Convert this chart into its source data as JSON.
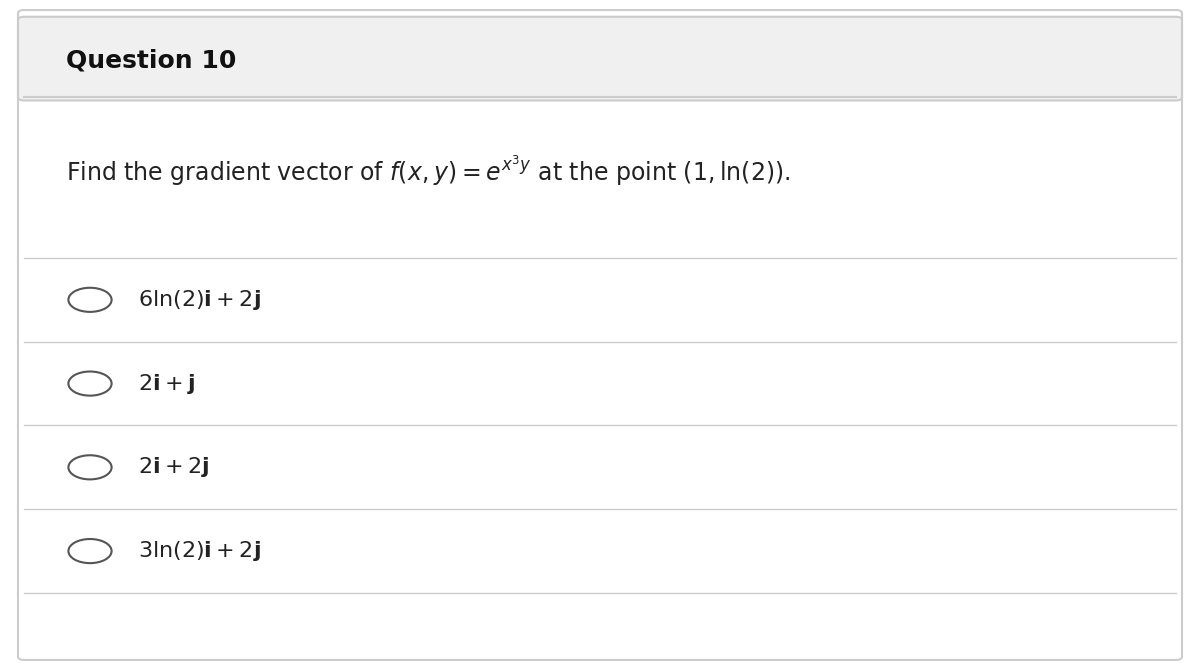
{
  "title": "Question 10",
  "question": "Find the gradient vector of $f(x, y) = e^{x^3 y}$ at the point $(1, \\ln(2))$.",
  "options": [
    "$6\\ln(2)\\mathbf{i} + 2\\mathbf{j}$",
    "$2\\mathbf{i} + \\mathbf{j}$",
    "$2\\mathbf{i} + 2\\mathbf{j}$",
    "$3\\ln(2)\\mathbf{i} + 2\\mathbf{j}$"
  ],
  "bg_color": "#ffffff",
  "header_bg": "#f0f0f0",
  "border_color": "#cccccc",
  "title_fontsize": 18,
  "question_fontsize": 17,
  "option_fontsize": 16,
  "text_color": "#222222",
  "header_text_color": "#111111"
}
